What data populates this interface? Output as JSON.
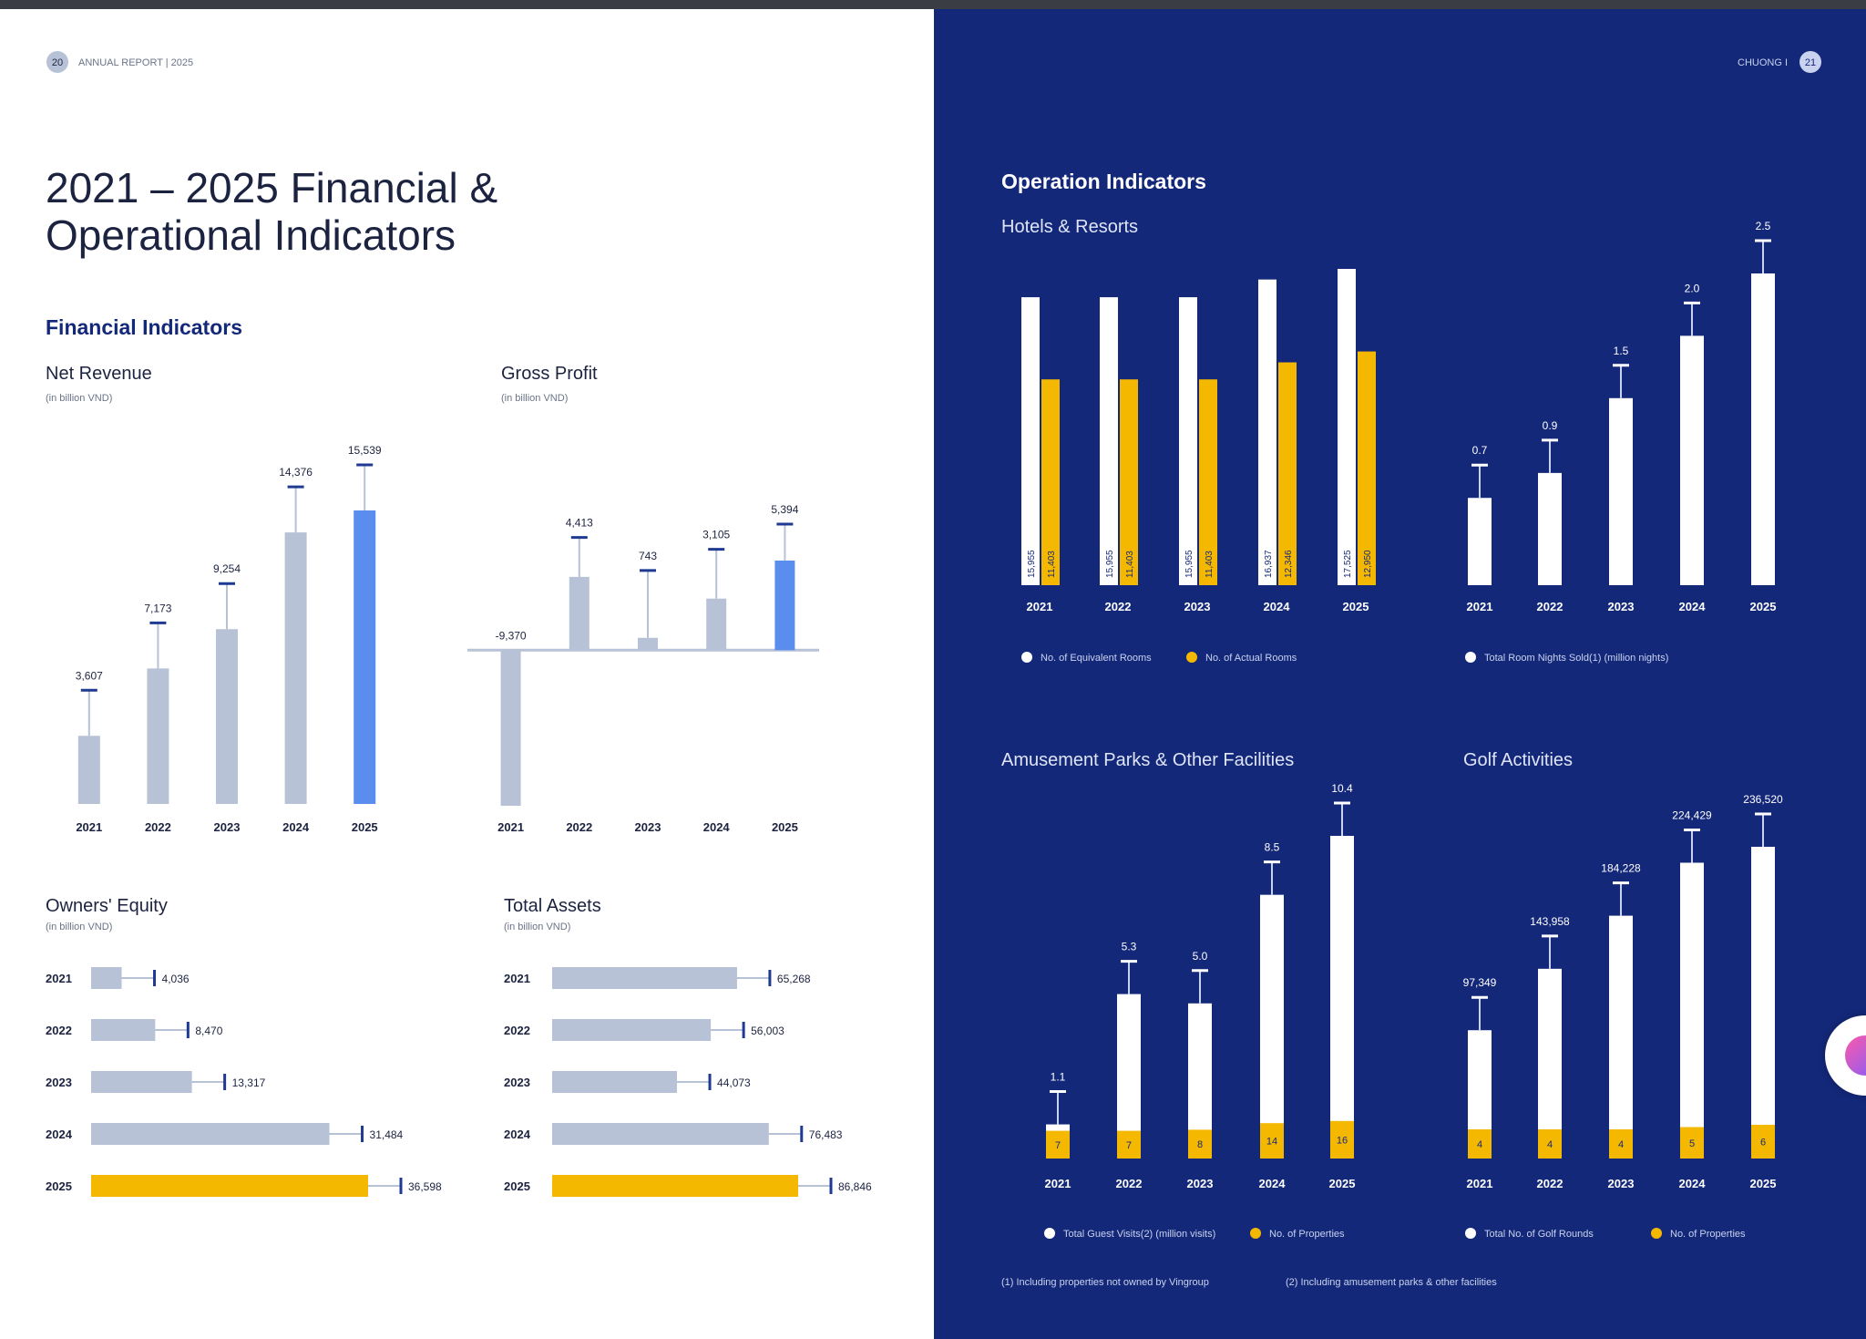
{
  "header_left": {
    "page_number": "20",
    "report_label": "ANNUAL REPORT | 2025"
  },
  "header_right": {
    "chapter_label": "CHUONG I",
    "page_number": "21"
  },
  "page_title_line1": "2021 – 2025 Financial &",
  "page_title_line2": "Operational Indicators",
  "financial_heading": "Financial Indicators",
  "operation_heading": "Operation Indicators",
  "colors": {
    "grey_bar": "#b7c2d6",
    "blue_highlight": "#5b8def",
    "gold": "#f5b800",
    "navy": "#14287a",
    "dark_text": "#1c2340",
    "value_tick": "#1f3a93",
    "white": "#ffffff"
  },
  "chart_data": [
    {
      "id": "net-revenue",
      "type": "bar",
      "title": "Net Revenue",
      "subtitle": "(in billion VND)",
      "categories": [
        "2021",
        "2022",
        "2023",
        "2024",
        "2025"
      ],
      "values": [
        3607,
        7173,
        9254,
        14376,
        15539
      ],
      "value_labels": [
        "3,607",
        "7,173",
        "9,254",
        "14,376",
        "15,539"
      ],
      "highlight_index": 4
    },
    {
      "id": "gross-profit",
      "type": "bar",
      "title": "Gross Profit",
      "subtitle": "(in billion VND)",
      "categories": [
        "2021",
        "2022",
        "2023",
        "2024",
        "2025"
      ],
      "values": [
        -9370,
        4413,
        743,
        3105,
        5394
      ],
      "value_labels": [
        "-9,370",
        "4,413",
        "743",
        "3,105",
        "5,394"
      ],
      "highlight_index": 4
    },
    {
      "id": "owners-equity",
      "type": "bar",
      "orientation": "horizontal",
      "title": "Owners' Equity",
      "subtitle": "(in billion VND)",
      "categories": [
        "2021",
        "2022",
        "2023",
        "2024",
        "2025"
      ],
      "values": [
        4036,
        8470,
        13317,
        31484,
        36598
      ],
      "value_labels": [
        "4,036",
        "8,470",
        "13,317",
        "31,484",
        "36,598"
      ],
      "highlight_index": 4
    },
    {
      "id": "total-assets",
      "type": "bar",
      "orientation": "horizontal",
      "title": "Total Assets",
      "subtitle": "(in billion VND)",
      "categories": [
        "2021",
        "2022",
        "2023",
        "2024",
        "2025"
      ],
      "values": [
        65268,
        56003,
        44073,
        76483,
        86846
      ],
      "value_labels": [
        "65,268",
        "56,003",
        "44,073",
        "76,483",
        "86,846"
      ],
      "highlight_index": 4
    },
    {
      "id": "hotels-rooms",
      "type": "bar",
      "title": "Hotels & Resorts",
      "categories": [
        "2021",
        "2022",
        "2023",
        "2024",
        "2025"
      ],
      "series": [
        {
          "name": "No. of Equivalent Rooms",
          "values": [
            15955,
            15955,
            15955,
            16937,
            17525
          ],
          "labels": [
            "15,955",
            "15,955",
            "15,955",
            "16,937",
            "17,525"
          ]
        },
        {
          "name": "No. of Actual Rooms",
          "values": [
            11403,
            11403,
            11403,
            12346,
            12950
          ],
          "labels": [
            "11,403",
            "11,403",
            "11,403",
            "12,346",
            "12,950"
          ]
        }
      ]
    },
    {
      "id": "room-nights",
      "type": "bar",
      "categories": [
        "2021",
        "2022",
        "2023",
        "2024",
        "2025"
      ],
      "series": [
        {
          "name": "Total Room Nights Sold(1) (million nights)",
          "values": [
            0.7,
            0.9,
            1.5,
            2.0,
            2.5
          ]
        }
      ],
      "value_labels": [
        "0.7",
        "0.9",
        "1.5",
        "2.0",
        "2.5"
      ]
    },
    {
      "id": "amusement-parks",
      "type": "bar",
      "title": "Amusement Parks & Other Facilities",
      "categories": [
        "2021",
        "2022",
        "2023",
        "2024",
        "2025"
      ],
      "series": [
        {
          "name": "Total Guest Visits(2) (million visits)",
          "values": [
            1.1,
            5.3,
            5.0,
            8.5,
            10.4
          ],
          "labels": [
            "1.1",
            "5.3",
            "5.0",
            "8.5",
            "10.4"
          ]
        },
        {
          "name": "No. of Properties",
          "values": [
            7,
            7,
            8,
            14,
            16
          ],
          "labels": [
            "7",
            "7",
            "8",
            "14",
            "16"
          ]
        }
      ]
    },
    {
      "id": "golf",
      "type": "bar",
      "title": "Golf Activities",
      "categories": [
        "2021",
        "2022",
        "2023",
        "2024",
        "2025"
      ],
      "series": [
        {
          "name": "Total No. of Golf Rounds",
          "values": [
            97349,
            143958,
            184228,
            224429,
            236520
          ],
          "labels": [
            "97,349",
            "143,958",
            "184,228",
            "224,429",
            "236,520"
          ]
        },
        {
          "name": "No. of Properties",
          "values": [
            4,
            4,
            4,
            5,
            6
          ],
          "labels": [
            "4",
            "4",
            "4",
            "5",
            "6"
          ]
        }
      ]
    }
  ],
  "footnotes": {
    "note1": "(1) Including properties not owned by Vingroup",
    "note2": "(2) Including amusement parks & other facilities"
  }
}
